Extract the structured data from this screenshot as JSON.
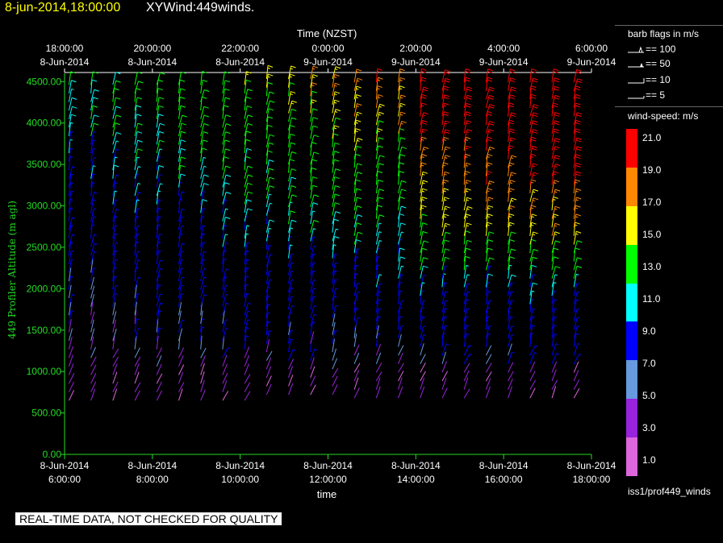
{
  "header": {
    "date": "8-jun-2014,18:00:00",
    "name": "XYWind:449winds."
  },
  "chart_data": {
    "type": "wind-barb",
    "top_axis_title": "Time (NZST)",
    "bottom_axis_title": "time",
    "ylabel": "449 Profiler Altitude (m agl)",
    "ylim": [
      0,
      4600
    ],
    "y_ticks": [
      "0.00",
      "500.00",
      "1000.00",
      "1500.00",
      "2000.00",
      "2500.00",
      "3000.00",
      "3500.00",
      "4000.00",
      "4500.00"
    ],
    "top_ticks": [
      {
        "time": "18:00:00",
        "date": "8-Jun-2014"
      },
      {
        "time": "20:00:00",
        "date": "8-Jun-2014"
      },
      {
        "time": "22:00:00",
        "date": "8-Jun-2014"
      },
      {
        "time": "0:00:00",
        "date": "9-Jun-2014"
      },
      {
        "time": "2:00:00",
        "date": "9-Jun-2014"
      },
      {
        "time": "4:00:00",
        "date": "9-Jun-2014"
      },
      {
        "time": "6:00:00",
        "date": "9-Jun-2014"
      }
    ],
    "bottom_ticks": [
      {
        "date": "8-Jun-2014",
        "time": "6:00:00"
      },
      {
        "date": "8-Jun-2014",
        "time": "8:00:00"
      },
      {
        "date": "8-Jun-2014",
        "time": "10:00:00"
      },
      {
        "date": "8-Jun-2014",
        "time": "12:00:00"
      },
      {
        "date": "8-Jun-2014",
        "time": "14:00:00"
      },
      {
        "date": "8-Jun-2014",
        "time": "16:00:00"
      },
      {
        "date": "8-Jun-2014",
        "time": "18:00:00"
      }
    ],
    "bottom_range_hours": [
      6.0,
      18.0
    ],
    "profile_times_hours": [
      6.1,
      6.6,
      7.1,
      7.6,
      8.1,
      8.6,
      9.1,
      9.6,
      10.1,
      10.6,
      11.1,
      11.6,
      12.1,
      12.6,
      13.1,
      13.6,
      14.1,
      14.6,
      15.1,
      15.6,
      16.1,
      16.6,
      17.1,
      17.6
    ],
    "barb_flags": {
      "title": "barb flags in m/s",
      "items": [
        {
          "label": "== 100",
          "type": "flag"
        },
        {
          "label": "== 50",
          "type": "pennant"
        },
        {
          "label": "== 10",
          "type": "full"
        },
        {
          "label": "== 5",
          "type": "half"
        }
      ]
    },
    "speed_legend": {
      "title": "wind-speed: m/s",
      "colors": [
        "#ff0000",
        "#ff8800",
        "#ffff00",
        "#00ff00",
        "#00ffff",
        "#0000ff",
        "#6699dd",
        "#9922dd",
        "#dd66dd"
      ],
      "labels": [
        "21.0",
        "19.0",
        "17.0",
        "15.0",
        "13.0",
        "11.0",
        "9.0",
        "7.0",
        "5.0",
        "3.0",
        "1.0"
      ]
    }
  },
  "warning": "REAL-TIME DATA, NOT CHECKED FOR QUALITY",
  "footer": "iss1/prof449_winds"
}
